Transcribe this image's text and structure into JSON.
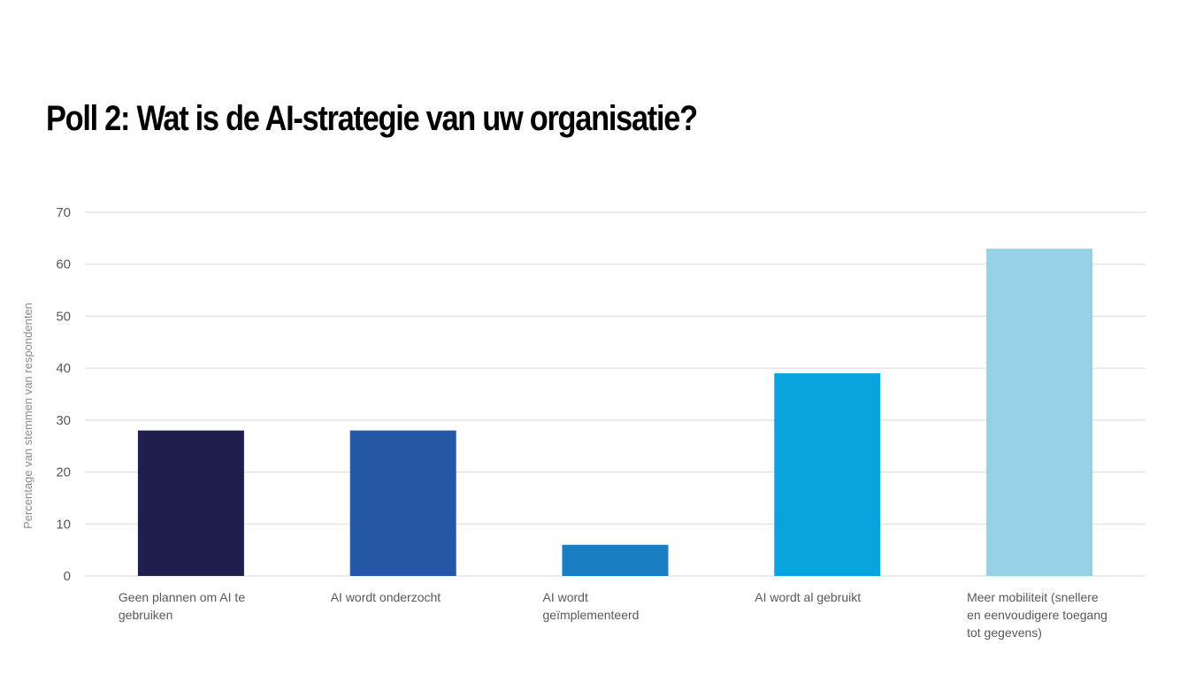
{
  "page": {
    "title": "Poll 2: Wat is de AI-strategie van uw organisatie?"
  },
  "chart_data": {
    "type": "bar",
    "title": "Poll 2: Wat is de AI-strategie van uw organisatie?",
    "ylabel": "Percentage van stemmen van respondenten",
    "xlabel": "",
    "ylim": [
      0,
      70
    ],
    "yticks": [
      0,
      10,
      20,
      30,
      40,
      50,
      60,
      70
    ],
    "grid": true,
    "legend": "none",
    "categories": [
      "Geen plannen om AI te gebruiken",
      "AI wordt onderzocht",
      "AI wordt geïmplementeerd",
      "AI wordt al gebruikt",
      "Meer mobiliteit (snellere en eenvoudigere toegang tot gegevens)"
    ],
    "category_label_lines": [
      [
        "Geen plannen om AI te",
        "gebruiken"
      ],
      [
        "AI wordt onderzocht"
      ],
      [
        "AI wordt",
        "geïmplementeerd"
      ],
      [
        "AI wordt al gebruikt"
      ],
      [
        "Meer mobiliteit (snellere",
        "en eenvoudigere toegang",
        "tot gegevens)"
      ]
    ],
    "values": [
      28,
      28,
      6,
      39,
      63
    ],
    "bar_colors": [
      "#1f1f4f",
      "#2457a6",
      "#1a7dc1",
      "#08a4de",
      "#97d1e6"
    ],
    "grid_color": "#d9d9d9"
  }
}
